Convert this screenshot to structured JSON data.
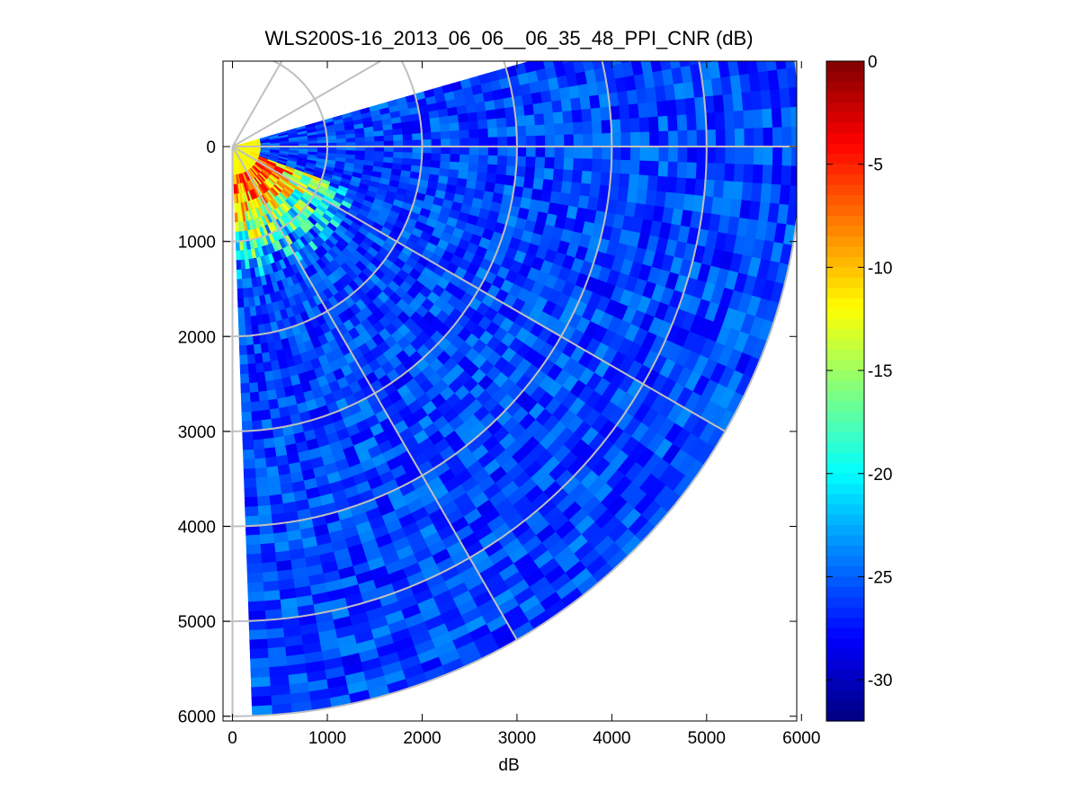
{
  "window": {
    "title": "WLS200S-16_2013_06_06__06_35_48_PPI_CNR (dB)"
  },
  "chart_data": {
    "type": "heatmap",
    "subtype": "polar-sector-ppi",
    "title": "WLS200S-16_2013_06_06__06_35_48_PPI_CNR (dB)",
    "xlabel": "dB",
    "ylabel": "",
    "x_ticks": [
      0,
      1000,
      2000,
      3000,
      4000,
      5000,
      6000
    ],
    "y_ticks": [
      0,
      1000,
      2000,
      3000,
      4000,
      5000,
      6000
    ],
    "xlim": [
      -100,
      5950
    ],
    "ylim": [
      -900,
      6050
    ],
    "y_axis_direction": "down",
    "grid": true,
    "sector": {
      "range_max_m": 6000,
      "azimuth_start_deg": -16,
      "azimuth_end_deg": 88,
      "azimuth_note": "angle measured from +x axis toward +y (downward on the plot)"
    },
    "range_rings_m": [
      1000,
      2000,
      3000,
      4000,
      5000,
      6000
    ],
    "radial_grid_angles_deg": [
      -60,
      -30,
      0,
      30,
      60,
      90
    ],
    "colorbar": {
      "colormap": "jet",
      "min": -32,
      "max": 0,
      "ticks": [
        0,
        -5,
        -10,
        -15,
        -20,
        -25,
        -30
      ],
      "location": "right"
    },
    "field_description": {
      "near_range_max_cnr_db": -12,
      "near_range_extent_m": 300,
      "strong_echo_band_cnr_db": -4,
      "strong_echo_band_range_m": [
        300,
        1400
      ],
      "background_cnr_db": -26,
      "background_noise_db": 2.5
    }
  }
}
